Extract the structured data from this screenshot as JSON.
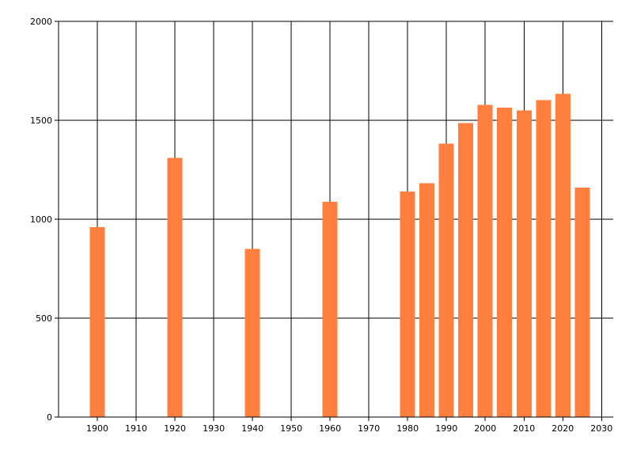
{
  "chart_data": {
    "type": "bar",
    "title": "",
    "xlabel": "",
    "ylabel": "",
    "bar_color": "#ff7f3f",
    "xlim": [
      1890,
      2033
    ],
    "ylim": [
      0,
      2000
    ],
    "grid": true,
    "x_ticks": [
      1900,
      1910,
      1920,
      1930,
      1940,
      1950,
      1960,
      1970,
      1980,
      1990,
      2000,
      2010,
      2020,
      2030
    ],
    "y_ticks": [
      0,
      500,
      1000,
      1500,
      2000
    ],
    "x": [
      1900,
      1920,
      1940,
      1960,
      1980,
      1985,
      1990,
      1995,
      2000,
      2005,
      2010,
      2015,
      2020,
      2025
    ],
    "values": [
      960,
      1310,
      850,
      1088,
      1140,
      1182,
      1382,
      1487,
      1578,
      1565,
      1550,
      1602,
      1635,
      1160
    ]
  }
}
